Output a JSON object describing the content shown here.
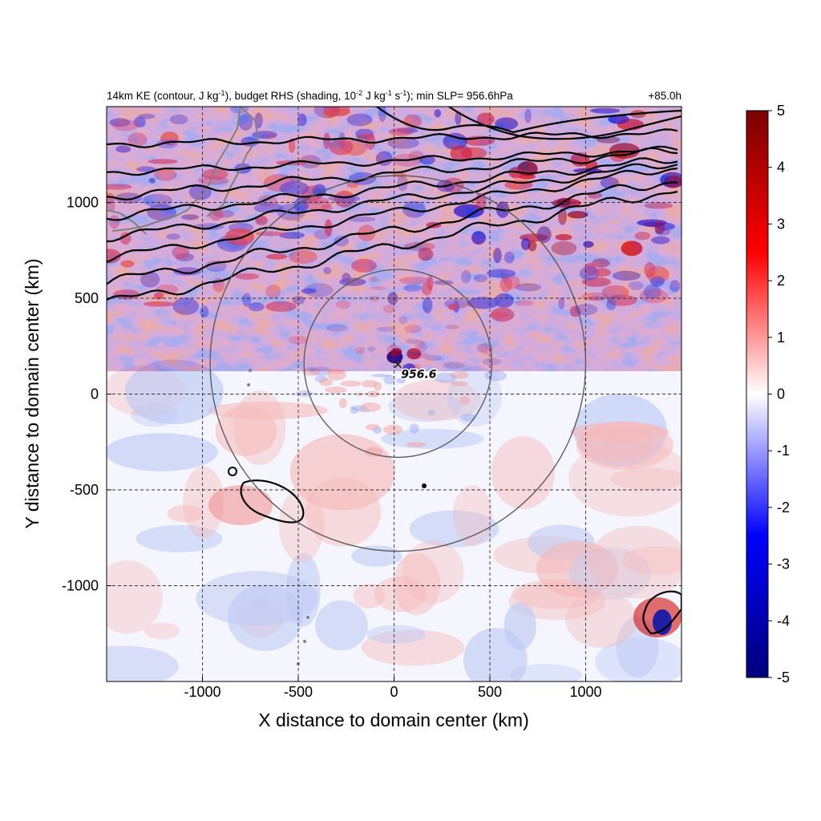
{
  "chart_data": {
    "type": "heatmap",
    "title_left_parts": [
      "14km KE (contour, J kg",
      "-1",
      "), budget RHS (shading, 10",
      "-2",
      " J kg",
      "-1",
      " s",
      "-1",
      "); min SLP= 956.6hPa"
    ],
    "title_right": "+85.0h",
    "xlabel": "X distance to domain center (km)",
    "ylabel": "Y distance to domain center (km)",
    "xlim": [
      -1500,
      1500
    ],
    "ylim": [
      -1500,
      1500
    ],
    "xticks": [
      -1000,
      -500,
      0,
      500,
      1000
    ],
    "yticks": [
      -1000,
      -500,
      0,
      500,
      1000
    ],
    "grid": true,
    "colorbar": {
      "range": [
        -5,
        5
      ],
      "ticks": [
        5,
        4,
        3,
        2,
        1,
        0,
        -1,
        -2,
        -3,
        -4,
        -5
      ],
      "colormap": [
        "#00007a",
        "#0000ff",
        "#ffffff",
        "#ff0000",
        "#7a0000"
      ]
    },
    "storm_center": {
      "x": 20,
      "y": 160,
      "label": "956.6"
    },
    "range_rings_km": [
      500,
      1000
    ],
    "marker": "×"
  }
}
